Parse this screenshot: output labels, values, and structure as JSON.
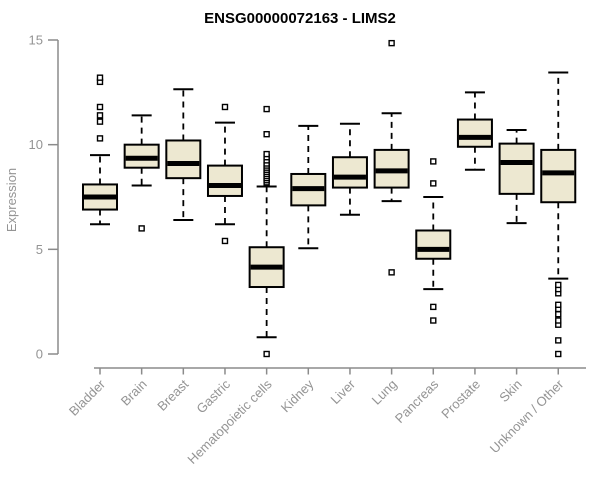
{
  "chart_data": {
    "type": "boxplot",
    "title": "ENSG00000072163 - LIMS2",
    "xlabel": "",
    "ylabel": "Expression",
    "ylim": [
      0,
      15
    ],
    "yticks": [
      0,
      5,
      10,
      15
    ],
    "grid": false,
    "legend": "none",
    "categories": [
      "Bladder",
      "Brain",
      "Breast",
      "Gastric",
      "Hematopoietic cells",
      "Kidney",
      "Liver",
      "Lung",
      "Pancreas",
      "Prostate",
      "Skin",
      "Unknown / Other"
    ],
    "series": [
      {
        "category": "Bladder",
        "whisker_low": 6.2,
        "q1": 6.9,
        "median": 7.5,
        "q3": 8.1,
        "whisker_high": 9.5,
        "outliers": [
          10.3,
          11.1,
          11.4,
          11.8,
          13.0,
          13.2
        ]
      },
      {
        "category": "Brain",
        "whisker_low": 8.05,
        "q1": 8.9,
        "median": 9.35,
        "q3": 10.0,
        "whisker_high": 11.4,
        "outliers": [
          6.0
        ]
      },
      {
        "category": "Breast",
        "whisker_low": 6.4,
        "q1": 8.4,
        "median": 9.1,
        "q3": 10.2,
        "whisker_high": 12.65,
        "outliers": []
      },
      {
        "category": "Gastric",
        "whisker_low": 6.2,
        "q1": 7.55,
        "median": 8.05,
        "q3": 9.0,
        "whisker_high": 11.05,
        "outliers": [
          5.4,
          11.8
        ]
      },
      {
        "category": "Hematopoietic cells",
        "whisker_low": 0.8,
        "q1": 3.2,
        "median": 4.15,
        "q3": 5.1,
        "whisker_high": 8.0,
        "outliers": [
          0.0,
          8.2,
          8.3,
          8.4,
          8.5,
          8.6,
          8.7,
          8.8,
          8.9,
          9.0,
          9.1,
          9.25,
          9.4,
          9.55,
          10.5,
          11.7
        ]
      },
      {
        "category": "Kidney",
        "whisker_low": 5.05,
        "q1": 7.1,
        "median": 7.9,
        "q3": 8.6,
        "whisker_high": 10.9,
        "outliers": []
      },
      {
        "category": "Liver",
        "whisker_low": 6.65,
        "q1": 7.95,
        "median": 8.45,
        "q3": 9.4,
        "whisker_high": 11.0,
        "outliers": []
      },
      {
        "category": "Lung",
        "whisker_low": 7.3,
        "q1": 7.95,
        "median": 8.75,
        "q3": 9.75,
        "whisker_high": 11.5,
        "outliers": [
          3.9,
          14.85
        ]
      },
      {
        "category": "Pancreas",
        "whisker_low": 3.1,
        "q1": 4.55,
        "median": 5.0,
        "q3": 5.9,
        "whisker_high": 7.5,
        "outliers": [
          1.6,
          2.25,
          8.15,
          9.2
        ]
      },
      {
        "category": "Prostate",
        "whisker_low": 8.8,
        "q1": 9.9,
        "median": 10.35,
        "q3": 11.2,
        "whisker_high": 12.5,
        "outliers": []
      },
      {
        "category": "Skin",
        "whisker_low": 6.25,
        "q1": 7.65,
        "median": 9.15,
        "q3": 10.05,
        "whisker_high": 10.7,
        "outliers": []
      },
      {
        "category": "Unknown / Other",
        "whisker_low": 3.6,
        "q1": 7.25,
        "median": 8.65,
        "q3": 9.75,
        "whisker_high": 13.45,
        "outliers": [
          0.0,
          0.65,
          1.4,
          1.6,
          1.9,
          2.15,
          2.35,
          2.9,
          3.1,
          3.3
        ]
      }
    ],
    "colors": {
      "box_fill": "#EDE8D1",
      "box_border": "#000000",
      "median": "#000000",
      "whisker": "#000000",
      "outlier": "#000000",
      "axis": "#8b8b8b",
      "tick_label": "#949494",
      "title": "#000000",
      "background": "#ffffff"
    }
  }
}
